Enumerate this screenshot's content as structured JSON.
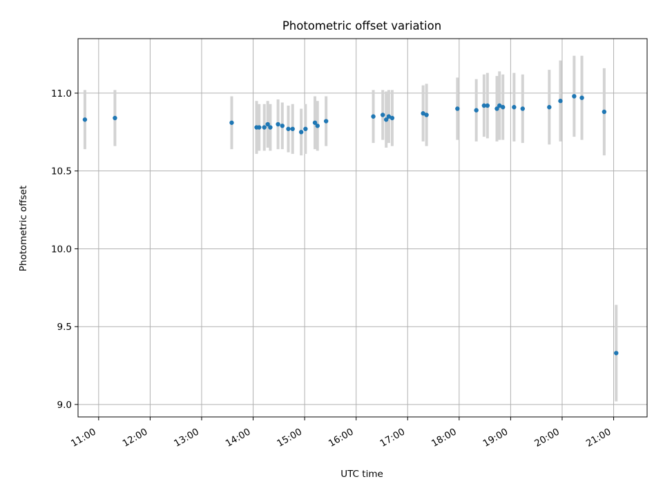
{
  "chart_data": {
    "type": "scatter",
    "title": "Photometric offset variation",
    "xlabel": "UTC time",
    "ylabel": "Photometric offset",
    "xlim": [
      "10:36",
      "21:39"
    ],
    "ylim": [
      8.92,
      11.35
    ],
    "x_ticks": [
      "11:00",
      "12:00",
      "13:00",
      "14:00",
      "15:00",
      "16:00",
      "17:00",
      "18:00",
      "19:00",
      "20:00",
      "21:00"
    ],
    "y_ticks": [
      9.0,
      9.5,
      10.0,
      10.5,
      11.0
    ],
    "y_tick_labels": [
      "9.0",
      "9.5",
      "10.0",
      "10.5",
      "11.0"
    ],
    "grid": true,
    "error_bar_color": "#d3d3d3",
    "marker_color": "#1f77b4",
    "points": [
      {
        "t": "10:44",
        "y": 10.83,
        "err": 0.19
      },
      {
        "t": "11:19",
        "y": 10.84,
        "err": 0.18
      },
      {
        "t": "13:35",
        "y": 10.81,
        "err": 0.17
      },
      {
        "t": "14:04",
        "y": 10.78,
        "err": 0.17
      },
      {
        "t": "14:07",
        "y": 10.78,
        "err": 0.15
      },
      {
        "t": "14:13",
        "y": 10.78,
        "err": 0.15
      },
      {
        "t": "14:17",
        "y": 10.8,
        "err": 0.15
      },
      {
        "t": "14:20",
        "y": 10.78,
        "err": 0.15
      },
      {
        "t": "14:29",
        "y": 10.8,
        "err": 0.16
      },
      {
        "t": "14:34",
        "y": 10.79,
        "err": 0.15
      },
      {
        "t": "14:41",
        "y": 10.77,
        "err": 0.15
      },
      {
        "t": "14:46",
        "y": 10.77,
        "err": 0.16
      },
      {
        "t": "14:56",
        "y": 10.75,
        "err": 0.15
      },
      {
        "t": "15:01",
        "y": 10.77,
        "err": 0.16
      },
      {
        "t": "15:12",
        "y": 10.81,
        "err": 0.17
      },
      {
        "t": "15:15",
        "y": 10.79,
        "err": 0.16
      },
      {
        "t": "15:25",
        "y": 10.82,
        "err": 0.16
      },
      {
        "t": "16:20",
        "y": 10.85,
        "err": 0.17
      },
      {
        "t": "16:31",
        "y": 10.86,
        "err": 0.16
      },
      {
        "t": "16:35",
        "y": 10.83,
        "err": 0.18
      },
      {
        "t": "16:38",
        "y": 10.85,
        "err": 0.17
      },
      {
        "t": "16:42",
        "y": 10.84,
        "err": 0.18
      },
      {
        "t": "17:18",
        "y": 10.87,
        "err": 0.18
      },
      {
        "t": "17:22",
        "y": 10.86,
        "err": 0.2
      },
      {
        "t": "17:58",
        "y": 10.9,
        "err": 0.2
      },
      {
        "t": "18:20",
        "y": 10.89,
        "err": 0.2
      },
      {
        "t": "18:29",
        "y": 10.92,
        "err": 0.2
      },
      {
        "t": "18:33",
        "y": 10.92,
        "err": 0.21
      },
      {
        "t": "18:44",
        "y": 10.9,
        "err": 0.21
      },
      {
        "t": "18:47",
        "y": 10.92,
        "err": 0.22
      },
      {
        "t": "18:51",
        "y": 10.91,
        "err": 0.21
      },
      {
        "t": "19:04",
        "y": 10.91,
        "err": 0.22
      },
      {
        "t": "19:14",
        "y": 10.9,
        "err": 0.22
      },
      {
        "t": "19:45",
        "y": 10.91,
        "err": 0.24
      },
      {
        "t": "19:58",
        "y": 10.95,
        "err": 0.26
      },
      {
        "t": "20:14",
        "y": 10.98,
        "err": 0.26
      },
      {
        "t": "20:23",
        "y": 10.97,
        "err": 0.27
      },
      {
        "t": "20:49",
        "y": 10.88,
        "err": 0.28
      },
      {
        "t": "21:03",
        "y": 9.33,
        "err": 0.31
      }
    ]
  }
}
